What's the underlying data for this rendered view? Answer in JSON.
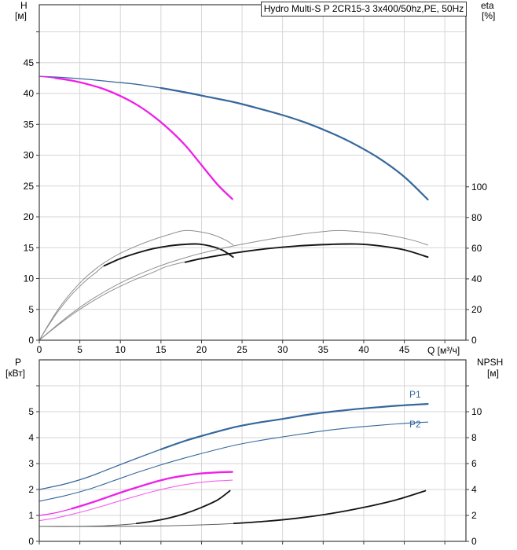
{
  "title_box": "Hydro Multi-S P 2CR15-3 3x400/50hz,PE, 50Hz",
  "labels": {
    "h": "H",
    "h_unit": "[м]",
    "eta": "eta",
    "eta_unit": "[%]",
    "q": "Q [м³/ч]",
    "p": "P",
    "p_unit": "[кВт]",
    "npsh": "NPSH",
    "npsh_unit": "[м]",
    "p1": "P1",
    "p2": "P2"
  },
  "colors": {
    "blue": "#35679c",
    "magenta": "#ee1fe8",
    "magenta_light": "#fa5cf2",
    "gray_curve": "#8f8f8f",
    "black_curve": "#141414",
    "grid": "#d6d6d6",
    "frame": "#3c3c3c"
  },
  "chart_data": [
    {
      "type": "line",
      "title": "Hydro Multi-S P 2CR15-3 3x400/50hz,PE, 50Hz",
      "xlabel": "Q [м³/ч]",
      "x": {
        "min": 0,
        "max": 52.6,
        "grid": [
          5,
          10,
          15,
          20,
          25,
          30,
          35,
          40,
          45,
          50
        ],
        "ticks": [
          0,
          5,
          10,
          15,
          20,
          25,
          30,
          35,
          40,
          45
        ],
        "show_labels": true
      },
      "y_left": {
        "label": "H [м]",
        "min": 0,
        "max": 54.4,
        "grid": [
          5,
          10,
          15,
          20,
          25,
          30,
          35,
          40,
          45,
          50
        ],
        "ticks": [
          0,
          5,
          10,
          15,
          20,
          25,
          30,
          35,
          40,
          45
        ],
        "minor_ticks": [
          50
        ]
      },
      "y_right": {
        "label": "eta [%]",
        "min": 0,
        "max": 218.7,
        "ticks": [
          0,
          20,
          40,
          60,
          80,
          100
        ],
        "minor_ticks": []
      },
      "series": [
        {
          "name": "head-2-pumps",
          "axis": "left",
          "color": "#35679c",
          "width": 1.3,
          "bold_from": 15,
          "bold_width": 2.2,
          "points": [
            [
              0,
              42.8
            ],
            [
              3,
              42.6
            ],
            [
              6,
              42.3
            ],
            [
              9,
              41.9
            ],
            [
              12,
              41.5
            ],
            [
              15,
              40.9
            ],
            [
              18,
              40.2
            ],
            [
              21,
              39.4
            ],
            [
              24,
              38.6
            ],
            [
              27,
              37.6
            ],
            [
              30,
              36.5
            ],
            [
              33,
              35.2
            ],
            [
              36,
              33.6
            ],
            [
              39,
              31.7
            ],
            [
              42,
              29.4
            ],
            [
              45,
              26.5
            ],
            [
              47.9,
              22.8
            ]
          ]
        },
        {
          "name": "head-1-pump",
          "axis": "left",
          "color": "#ee1fe8",
          "width": 1.2,
          "bold_from": 2,
          "bold_width": 2.3,
          "points": [
            [
              0,
              42.8
            ],
            [
              2,
              42.5
            ],
            [
              4,
              42.1
            ],
            [
              6,
              41.5
            ],
            [
              8,
              40.7
            ],
            [
              10,
              39.6
            ],
            [
              12,
              38.2
            ],
            [
              14,
              36.4
            ],
            [
              16,
              34.2
            ],
            [
              18,
              31.6
            ],
            [
              20,
              28.4
            ],
            [
              22,
              25.2
            ],
            [
              23.8,
              22.9
            ]
          ]
        },
        {
          "name": "eta-1-pump",
          "axis": "right",
          "color": "#8f8f8f",
          "width": 1,
          "points": [
            [
              0,
              0
            ],
            [
              1,
              9
            ],
            [
              2,
              17.5
            ],
            [
              3,
              25
            ],
            [
              4,
              31.5
            ],
            [
              5,
              37.3
            ],
            [
              6,
              42.3
            ],
            [
              7,
              46.7
            ],
            [
              8,
              50.5
            ],
            [
              9,
              53.8
            ],
            [
              10,
              56.7
            ],
            [
              12,
              61.5
            ],
            [
              14,
              65.5
            ],
            [
              16,
              68.9
            ],
            [
              17.5,
              71.2
            ],
            [
              18.5,
              71.5
            ],
            [
              20,
              70.5
            ],
            [
              21.5,
              68.6
            ],
            [
              23,
              65.2
            ],
            [
              23.9,
              62
            ]
          ]
        },
        {
          "name": "eta-1-pump-duty",
          "axis": "right",
          "color": "#8f8f8f",
          "width": 1,
          "bold_from": 8,
          "bold_width": 1.9,
          "bold_color": "#141414",
          "points": [
            [
              0,
              0
            ],
            [
              1,
              8.5
            ],
            [
              2,
              16.5
            ],
            [
              3,
              23.5
            ],
            [
              4,
              29.8
            ],
            [
              5,
              35.2
            ],
            [
              6,
              40
            ],
            [
              7,
              44.2
            ],
            [
              8,
              48.5
            ],
            [
              10,
              53.2
            ],
            [
              12,
              56.8
            ],
            [
              14,
              59.6
            ],
            [
              16,
              61.5
            ],
            [
              18,
              62.5
            ],
            [
              19.5,
              62.7
            ],
            [
              21,
              61.5
            ],
            [
              22.5,
              58.9
            ],
            [
              23.9,
              54.2
            ]
          ]
        },
        {
          "name": "eta-2-pumps",
          "axis": "right",
          "color": "#8f8f8f",
          "width": 1,
          "points": [
            [
              0,
              0
            ],
            [
              2,
              9
            ],
            [
              4,
              17.5
            ],
            [
              6,
              25
            ],
            [
              8,
              31.5
            ],
            [
              10,
              37.3
            ],
            [
              12,
              42.3
            ],
            [
              14,
              46.7
            ],
            [
              16,
              50.5
            ],
            [
              18,
              53.8
            ],
            [
              20,
              56.7
            ],
            [
              24,
              61.5
            ],
            [
              28,
              65.5
            ],
            [
              32,
              68.9
            ],
            [
              35,
              70.8
            ],
            [
              37,
              71.5
            ],
            [
              40,
              70.5
            ],
            [
              43,
              68.6
            ],
            [
              46,
              65.2
            ],
            [
              47.9,
              62
            ]
          ]
        },
        {
          "name": "eta-2-pumps-duty",
          "axis": "right",
          "color": "#8f8f8f",
          "width": 1,
          "bold_from": 18,
          "bold_width": 1.9,
          "bold_color": "#141414",
          "points": [
            [
              0,
              0
            ],
            [
              2,
              8.5
            ],
            [
              4,
              16.5
            ],
            [
              6,
              23.5
            ],
            [
              8,
              29.8
            ],
            [
              10,
              35.2
            ],
            [
              12,
              40
            ],
            [
              14,
              44.2
            ],
            [
              16,
              48.5
            ],
            [
              20,
              53.2
            ],
            [
              24,
              56.8
            ],
            [
              28,
              59.6
            ],
            [
              32,
              61.5
            ],
            [
              36,
              62.5
            ],
            [
              39,
              62.7
            ],
            [
              42,
              61.5
            ],
            [
              45,
              58.9
            ],
            [
              47.9,
              54.2
            ]
          ]
        }
      ]
    },
    {
      "type": "line",
      "xlabel": "",
      "x": {
        "min": 0,
        "max": 52.6,
        "grid": [
          5,
          10,
          15,
          20,
          25,
          30,
          35,
          40,
          45,
          50
        ],
        "ticks": [
          0,
          5,
          10,
          15,
          20,
          25,
          30,
          35,
          40,
          45
        ],
        "show_labels": false
      },
      "y_left": {
        "label": "P [кВт]",
        "min": 0,
        "max": 7,
        "grid": [
          1,
          2,
          3,
          4,
          5,
          6
        ],
        "ticks": [
          0,
          1,
          2,
          3,
          4,
          5
        ],
        "minor_ticks": [
          6
        ]
      },
      "y_right": {
        "label": "NPSH [м]",
        "min": 0,
        "max": 14,
        "ticks": [
          0,
          2,
          4,
          6,
          8,
          10
        ],
        "minor_ticks": [
          12
        ]
      },
      "series": [
        {
          "name": "power-p1-2-pumps",
          "axis": "left",
          "color": "#35679c",
          "width": 1.3,
          "bold_from": 15,
          "bold_width": 2.2,
          "label": "P1",
          "points": [
            [
              0,
              2.0
            ],
            [
              3,
              2.2
            ],
            [
              6,
              2.48
            ],
            [
              9,
              2.84
            ],
            [
              12,
              3.2
            ],
            [
              15,
              3.55
            ],
            [
              18,
              3.88
            ],
            [
              21,
              4.15
            ],
            [
              24,
              4.4
            ],
            [
              27,
              4.58
            ],
            [
              30,
              4.72
            ],
            [
              33,
              4.88
            ],
            [
              36,
              5.0
            ],
            [
              39,
              5.1
            ],
            [
              42,
              5.18
            ],
            [
              45,
              5.25
            ],
            [
              47.9,
              5.3
            ]
          ]
        },
        {
          "name": "power-p2-2-pumps",
          "axis": "left",
          "color": "#35679c",
          "width": 1.1,
          "label": "P2",
          "points": [
            [
              0,
              1.55
            ],
            [
              3,
              1.75
            ],
            [
              6,
              2.0
            ],
            [
              9,
              2.32
            ],
            [
              12,
              2.65
            ],
            [
              15,
              2.95
            ],
            [
              18,
              3.22
            ],
            [
              21,
              3.47
            ],
            [
              24,
              3.7
            ],
            [
              27,
              3.88
            ],
            [
              30,
              4.03
            ],
            [
              33,
              4.17
            ],
            [
              36,
              4.3
            ],
            [
              39,
              4.4
            ],
            [
              42,
              4.48
            ],
            [
              45,
              4.55
            ],
            [
              47.9,
              4.6
            ]
          ]
        },
        {
          "name": "power-p1-1-pump",
          "axis": "left",
          "color": "#ee1fe8",
          "width": 1.2,
          "bold_from": 4,
          "bold_width": 2.3,
          "points": [
            [
              0,
              1.0
            ],
            [
              2,
              1.1
            ],
            [
              4,
              1.26
            ],
            [
              6,
              1.45
            ],
            [
              8,
              1.66
            ],
            [
              10,
              1.88
            ],
            [
              12,
              2.08
            ],
            [
              14,
              2.27
            ],
            [
              16,
              2.43
            ],
            [
              18,
              2.54
            ],
            [
              20,
              2.62
            ],
            [
              22,
              2.66
            ],
            [
              23.8,
              2.68
            ]
          ]
        },
        {
          "name": "power-p2-1-pump",
          "axis": "left",
          "color": "#fa5cf2",
          "width": 1.1,
          "points": [
            [
              0,
              0.8
            ],
            [
              2,
              0.9
            ],
            [
              4,
              1.04
            ],
            [
              6,
              1.2
            ],
            [
              8,
              1.38
            ],
            [
              10,
              1.57
            ],
            [
              12,
              1.75
            ],
            [
              14,
              1.92
            ],
            [
              16,
              2.07
            ],
            [
              18,
              2.19
            ],
            [
              20,
              2.28
            ],
            [
              22,
              2.33
            ],
            [
              23.8,
              2.36
            ]
          ]
        },
        {
          "name": "npsh-1-pump",
          "axis": "right",
          "color": "#606060",
          "width": 1,
          "bold_from": 12,
          "bold_width": 1.8,
          "bold_color": "#141414",
          "points": [
            [
              0,
              1.15
            ],
            [
              4,
              1.15
            ],
            [
              8,
              1.2
            ],
            [
              10,
              1.27
            ],
            [
              12,
              1.38
            ],
            [
              14,
              1.55
            ],
            [
              16,
              1.8
            ],
            [
              18,
              2.15
            ],
            [
              20,
              2.62
            ],
            [
              22,
              3.2
            ],
            [
              23.5,
              3.9
            ]
          ]
        },
        {
          "name": "npsh-2-pumps",
          "axis": "right",
          "color": "#606060",
          "width": 1,
          "bold_from": 24,
          "bold_width": 1.8,
          "bold_color": "#141414",
          "points": [
            [
              0,
              1.15
            ],
            [
              8,
              1.15
            ],
            [
              16,
              1.2
            ],
            [
              20,
              1.27
            ],
            [
              24,
              1.38
            ],
            [
              28,
              1.55
            ],
            [
              32,
              1.8
            ],
            [
              36,
              2.15
            ],
            [
              40,
              2.62
            ],
            [
              44,
              3.2
            ],
            [
              47.6,
              3.9
            ]
          ]
        }
      ]
    }
  ]
}
